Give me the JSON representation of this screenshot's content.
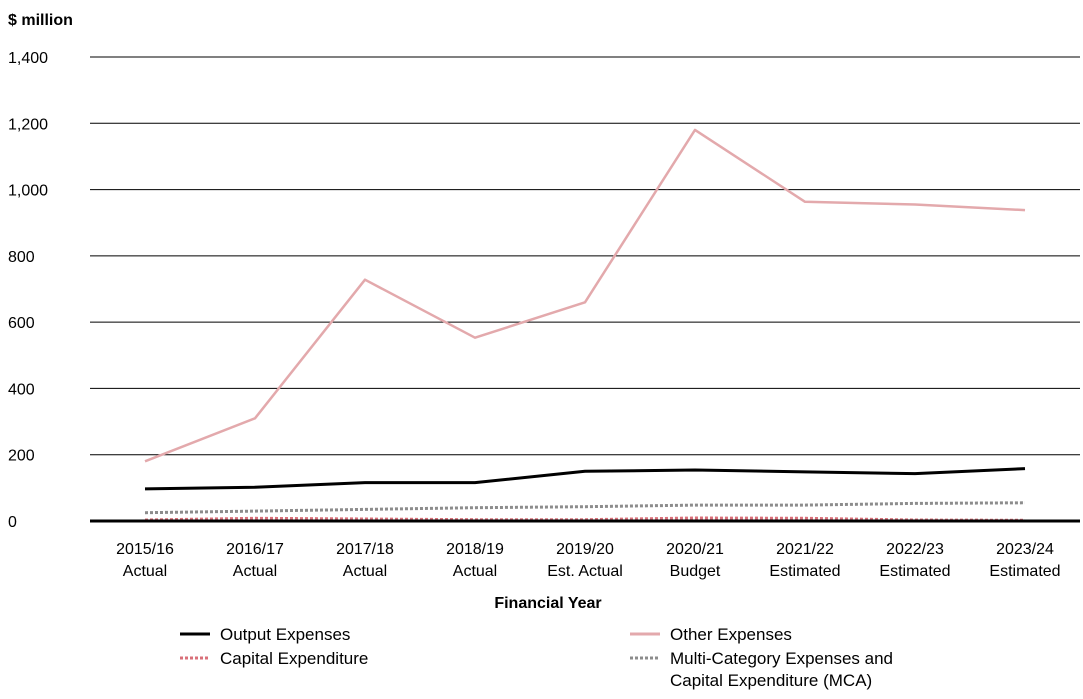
{
  "chart_data": {
    "type": "line",
    "y_unit_label": "$ million",
    "xlabel": "Financial Year",
    "ylim": [
      0,
      1400
    ],
    "y_ticks": [
      0,
      200,
      400,
      600,
      800,
      1000,
      1200,
      1400
    ],
    "y_tick_labels": [
      "0",
      "200",
      "400",
      "600",
      "800",
      "1,000",
      "1,200",
      "1,400"
    ],
    "grid": true,
    "categories": [
      [
        "2015/16",
        "Actual"
      ],
      [
        "2016/17",
        "Actual"
      ],
      [
        "2017/18",
        "Actual"
      ],
      [
        "2018/19",
        "Actual"
      ],
      [
        "2019/20",
        "Est. Actual"
      ],
      [
        "2020/21",
        "Budget"
      ],
      [
        "2021/22",
        "Estimated"
      ],
      [
        "2022/23",
        "Estimated"
      ],
      [
        "2023/24",
        "Estimated"
      ]
    ],
    "legend_position": "bottom",
    "series": [
      {
        "name": "Output Expenses",
        "color": "#000000",
        "style": "solid",
        "values": [
          97,
          102,
          116,
          116,
          150,
          154,
          148,
          143,
          158
        ]
      },
      {
        "name": "Other Expenses",
        "color": "#e3a9ac",
        "style": "solid",
        "values": [
          180,
          310,
          728,
          553,
          660,
          1180,
          963,
          955,
          938
        ]
      },
      {
        "name": "Capital Expenditure",
        "color": "#d9707a",
        "style": "dotted",
        "values": [
          3,
          8,
          6,
          4,
          4,
          9,
          8,
          3,
          2
        ]
      },
      {
        "name": "Multi-Category Expenses and Capital Expenditure (MCA)",
        "color": "#8c8c8c",
        "style": "dotted",
        "values": [
          25,
          30,
          35,
          40,
          43,
          48,
          48,
          53,
          55
        ]
      }
    ],
    "legend": [
      {
        "label_lines": [
          "Output Expenses"
        ],
        "series": 0
      },
      {
        "label_lines": [
          "Other Expenses"
        ],
        "series": 1
      },
      {
        "label_lines": [
          "Capital Expenditure"
        ],
        "series": 2
      },
      {
        "label_lines": [
          "Multi-Category Expenses and",
          "Capital Expenditure (MCA)"
        ],
        "series": 3
      }
    ]
  }
}
